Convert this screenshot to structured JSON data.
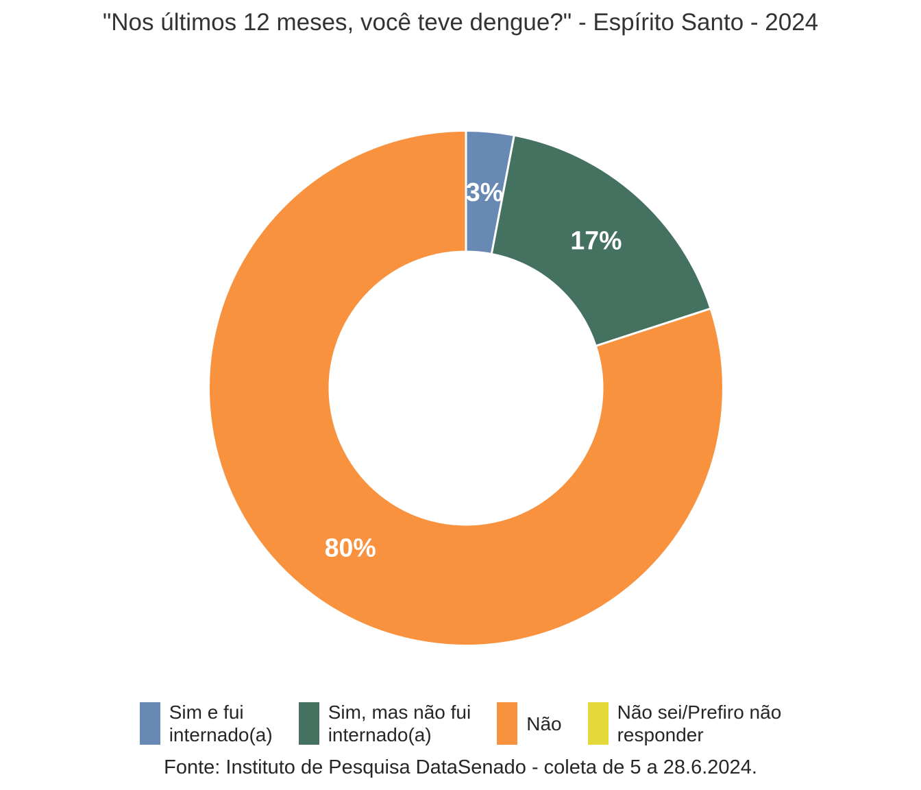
{
  "header": {
    "title": "\"Nos últimos 12 meses, você teve dengue?\" - Espírito Santo - 2024"
  },
  "footer": {
    "source": "Fonte: Instituto de Pesquisa DataSenado - coleta de 5 a 28.6.2024."
  },
  "colors": {
    "slice_blue": "#6889b3",
    "slice_green": "#447160",
    "slice_orange": "#f8923e",
    "slice_yellow": "#e3d83a",
    "slice_label": "#ffffff",
    "slice_border": "#ffffff",
    "text": "#333333"
  },
  "chart_data": {
    "type": "pie",
    "subtype": "donut",
    "title": "\"Nos últimos 12 meses, você teve dengue?\" - Espírito Santo - 2024",
    "categories": [
      "Sim e fui internado(a)",
      "Sim, mas não fui internado(a)",
      "Não",
      "Não sei/Prefiro não responder"
    ],
    "values": [
      3,
      17,
      80,
      0
    ],
    "unit": "%",
    "slices": [
      {
        "label": "Sim e fui internado(a)",
        "legend_label": "Sim e fui\ninternado(a)",
        "value": 3,
        "display": "3%",
        "color": "#6889b3"
      },
      {
        "label": "Sim, mas não fui internado(a)",
        "legend_label": "Sim, mas não fui\ninternado(a)",
        "value": 17,
        "display": "17%",
        "color": "#447160"
      },
      {
        "label": "Não",
        "legend_label": "Não",
        "value": 80,
        "display": "80%",
        "color": "#f8923e"
      },
      {
        "label": "Não sei/Prefiro não responder",
        "legend_label": "Não sei/Prefiro não\nresponder",
        "value": 0,
        "display": "",
        "color": "#e3d83a"
      }
    ],
    "inner_radius_ratio": 0.53,
    "start_angle_deg": -90,
    "direction": "clockwise",
    "slice_label_color": "#ffffff",
    "slice_border_color": "#ffffff",
    "legend_position": "bottom",
    "source": "Fonte: Instituto de Pesquisa DataSenado - coleta de 5 a 28.6.2024."
  }
}
